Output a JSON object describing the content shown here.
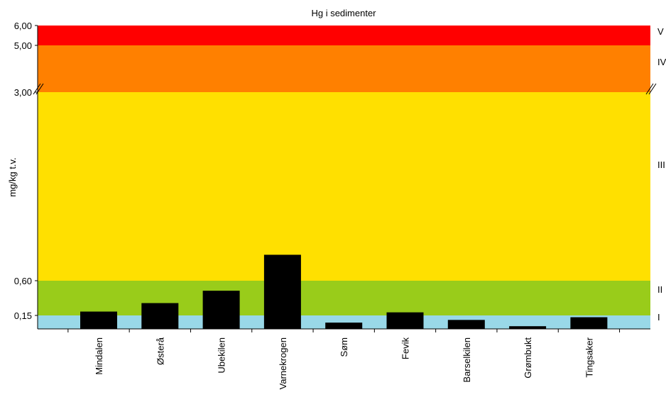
{
  "chart_data": {
    "type": "bar",
    "title": "Hg i sedimenter",
    "ylabel": "mg/kg t.v.",
    "xlabel": "",
    "categories": [
      "Mindalen",
      "Østerå",
      "Ubekilen",
      "Varnekrogen",
      "Søm",
      "Fevik",
      "Barselkilen",
      "Grømbukt",
      "Tingsaker"
    ],
    "values": [
      0.2,
      0.31,
      0.47,
      0.93,
      0.07,
      0.19,
      0.1,
      0.03,
      0.13
    ],
    "ylim": [
      0,
      6
    ],
    "yticks": [
      "0,15",
      "0,60",
      "3,00",
      "5,00",
      "6,00"
    ],
    "axis_break": "between 0,60–3,00 band top and 3,00 (scale break marks at 3,00)",
    "classes": [
      {
        "label": "I",
        "from": 0,
        "to": 0.15,
        "color": "#99d8e8"
      },
      {
        "label": "II",
        "from": 0.15,
        "to": 0.6,
        "color": "#99cc1a"
      },
      {
        "label": "III",
        "from": 0.6,
        "to": 3.0,
        "color": "#ffe000"
      },
      {
        "label": "IV",
        "from": 3.0,
        "to": 5.0,
        "color": "#ff8000"
      },
      {
        "label": "V",
        "from": 5.0,
        "to": 6.0,
        "color": "#ff0000"
      }
    ],
    "bar_color": "#000000"
  }
}
